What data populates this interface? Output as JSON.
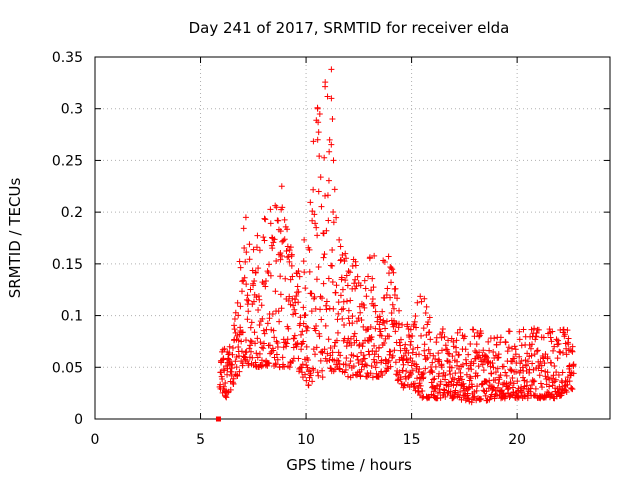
{
  "chart_data": {
    "type": "scatter",
    "title": "Day 241 of 2017, SRMTID for receiver elda",
    "xlabel": "GPS time / hours",
    "ylabel": "SRMTID / TECUs",
    "xlim": [
      0,
      24.4
    ],
    "ylim": [
      0,
      0.35
    ],
    "xticks": [
      0,
      5,
      10,
      15,
      20
    ],
    "xtick_labels": [
      "0",
      "5",
      "10",
      "15",
      "20"
    ],
    "yticks": [
      0,
      0.05,
      0.1,
      0.15,
      0.2,
      0.25,
      0.3,
      0.35
    ],
    "ytick_labels": [
      "0",
      "0.05",
      "0.1",
      "0.15",
      "0.2",
      "0.25",
      "0.3",
      "0.35"
    ],
    "grid": true,
    "marker": "plus",
    "color": "#ff0000",
    "anchor_point": {
      "x": 5.85,
      "y": 0.0
    },
    "envelope": {
      "x": [
        5.9,
        6.2,
        6.5,
        7.0,
        7.5,
        8.0,
        8.5,
        9.0,
        9.5,
        10.0,
        10.5,
        11.0,
        11.5,
        12.0,
        12.5,
        13.0,
        13.5,
        14.0,
        14.5,
        15.0,
        15.5,
        16.0,
        17.0,
        18.0,
        19.0,
        20.0,
        21.0,
        22.0,
        22.7
      ],
      "low": [
        0.03,
        0.02,
        0.03,
        0.05,
        0.05,
        0.05,
        0.05,
        0.05,
        0.05,
        0.03,
        0.04,
        0.04,
        0.05,
        0.04,
        0.04,
        0.04,
        0.04,
        0.05,
        0.03,
        0.03,
        0.02,
        0.02,
        0.02,
        0.015,
        0.02,
        0.02,
        0.02,
        0.02,
        0.03
      ],
      "high": [
        0.065,
        0.07,
        0.07,
        0.19,
        0.165,
        0.2,
        0.225,
        0.2,
        0.14,
        0.185,
        0.305,
        0.34,
        0.18,
        0.16,
        0.16,
        0.17,
        0.16,
        0.17,
        0.09,
        0.1,
        0.125,
        0.09,
        0.085,
        0.09,
        0.08,
        0.09,
        0.09,
        0.095,
        0.08
      ]
    }
  }
}
